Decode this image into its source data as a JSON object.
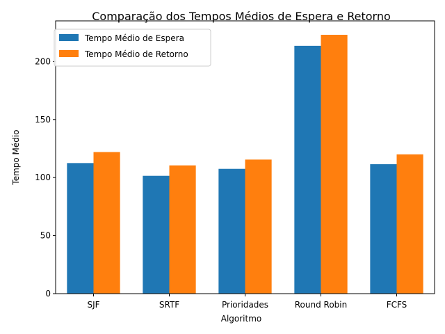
{
  "chart_data": {
    "type": "bar",
    "title": "Comparação dos Tempos Médios de Espera e Retorno",
    "xlabel": "Algoritmo",
    "ylabel": "Tempo Médio",
    "categories": [
      "SJF",
      "SRTF",
      "Prioridades",
      "Round Robin",
      "FCFS"
    ],
    "series": [
      {
        "name": "Tempo Médio de Espera",
        "color": "#1f77b4",
        "values": [
          112.5,
          101.5,
          107.5,
          213.5,
          111.5
        ]
      },
      {
        "name": "Tempo Médio de Retorno",
        "color": "#ff7f0e",
        "values": [
          122,
          110.5,
          115.5,
          223,
          120
        ]
      }
    ],
    "ylim": [
      0,
      235
    ],
    "yticks": [
      0,
      50,
      100,
      150,
      200
    ],
    "legend": "top-left",
    "grid": false
  }
}
